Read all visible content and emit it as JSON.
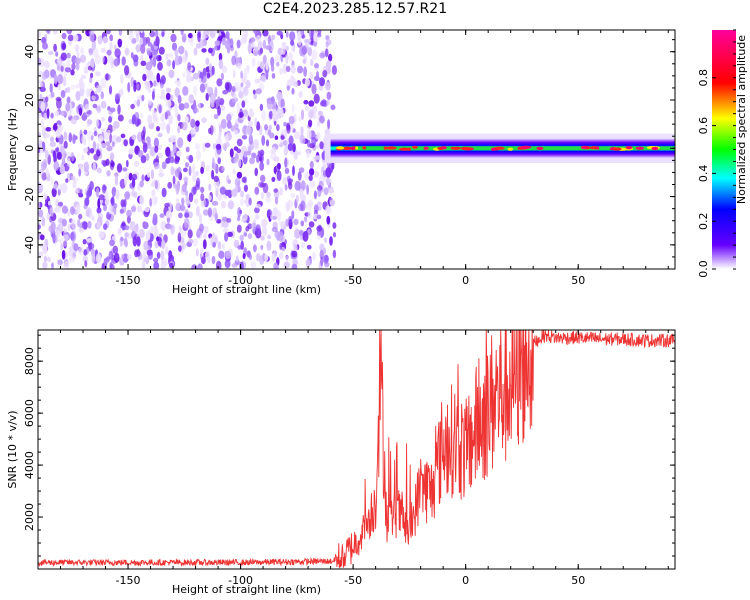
{
  "title": "C2E4.2023.285.12.57.R21",
  "chart_data": [
    {
      "type": "heatmap",
      "xlabel": "Height of straight line (km)",
      "ylabel": "Frequency (Hz)",
      "xlim": [
        -190,
        93
      ],
      "ylim": [
        -50,
        49
      ],
      "xticks": [
        -150,
        -100,
        -50,
        0,
        50
      ],
      "yticks": [
        -40,
        -20,
        0,
        20,
        40
      ],
      "colorbar": {
        "label": "Normalized spectral amplitude",
        "range": [
          0.0,
          1.0
        ],
        "ticks": [
          0.0,
          0.2,
          0.4,
          0.6,
          0.8
        ],
        "colors": [
          "#ffffff",
          "#6600ff",
          "#0000ff",
          "#00ffff",
          "#00ff00",
          "#ffff00",
          "#ff0000",
          "#ff0099"
        ]
      },
      "noise_region_x": [
        -190,
        -60
      ],
      "signal_band": {
        "x_start": -60,
        "x_end": 93,
        "center_freq": 0,
        "half_width": 4
      }
    },
    {
      "type": "line",
      "xlabel": "Height of straight line (km)",
      "ylabel": "SNR (10 * v/v)",
      "xlim": [
        -190,
        93
      ],
      "ylim": [
        0,
        9200
      ],
      "xticks": [
        -150,
        -100,
        -50,
        0,
        50
      ],
      "yticks": [
        2000,
        4000,
        6000,
        8000
      ],
      "color": "#ee3333",
      "series": [
        {
          "x": [
            -190,
            -150,
            -100,
            -60,
            -55,
            -50,
            -45,
            -40,
            -38,
            -35,
            -30,
            -25,
            -20,
            -15,
            -10,
            -5,
            0,
            5,
            10,
            15,
            20,
            25,
            30,
            35,
            40,
            50,
            60,
            70,
            80,
            90,
            93
          ],
          "y": [
            250,
            250,
            250,
            300,
            400,
            900,
            1500,
            2600,
            7900,
            1800,
            2200,
            1300,
            3200,
            3000,
            4800,
            5000,
            4500,
            5500,
            6200,
            6800,
            7200,
            8200,
            8700,
            9000,
            8900,
            8900,
            8850,
            8850,
            8800,
            8800,
            8800
          ]
        }
      ]
    }
  ]
}
